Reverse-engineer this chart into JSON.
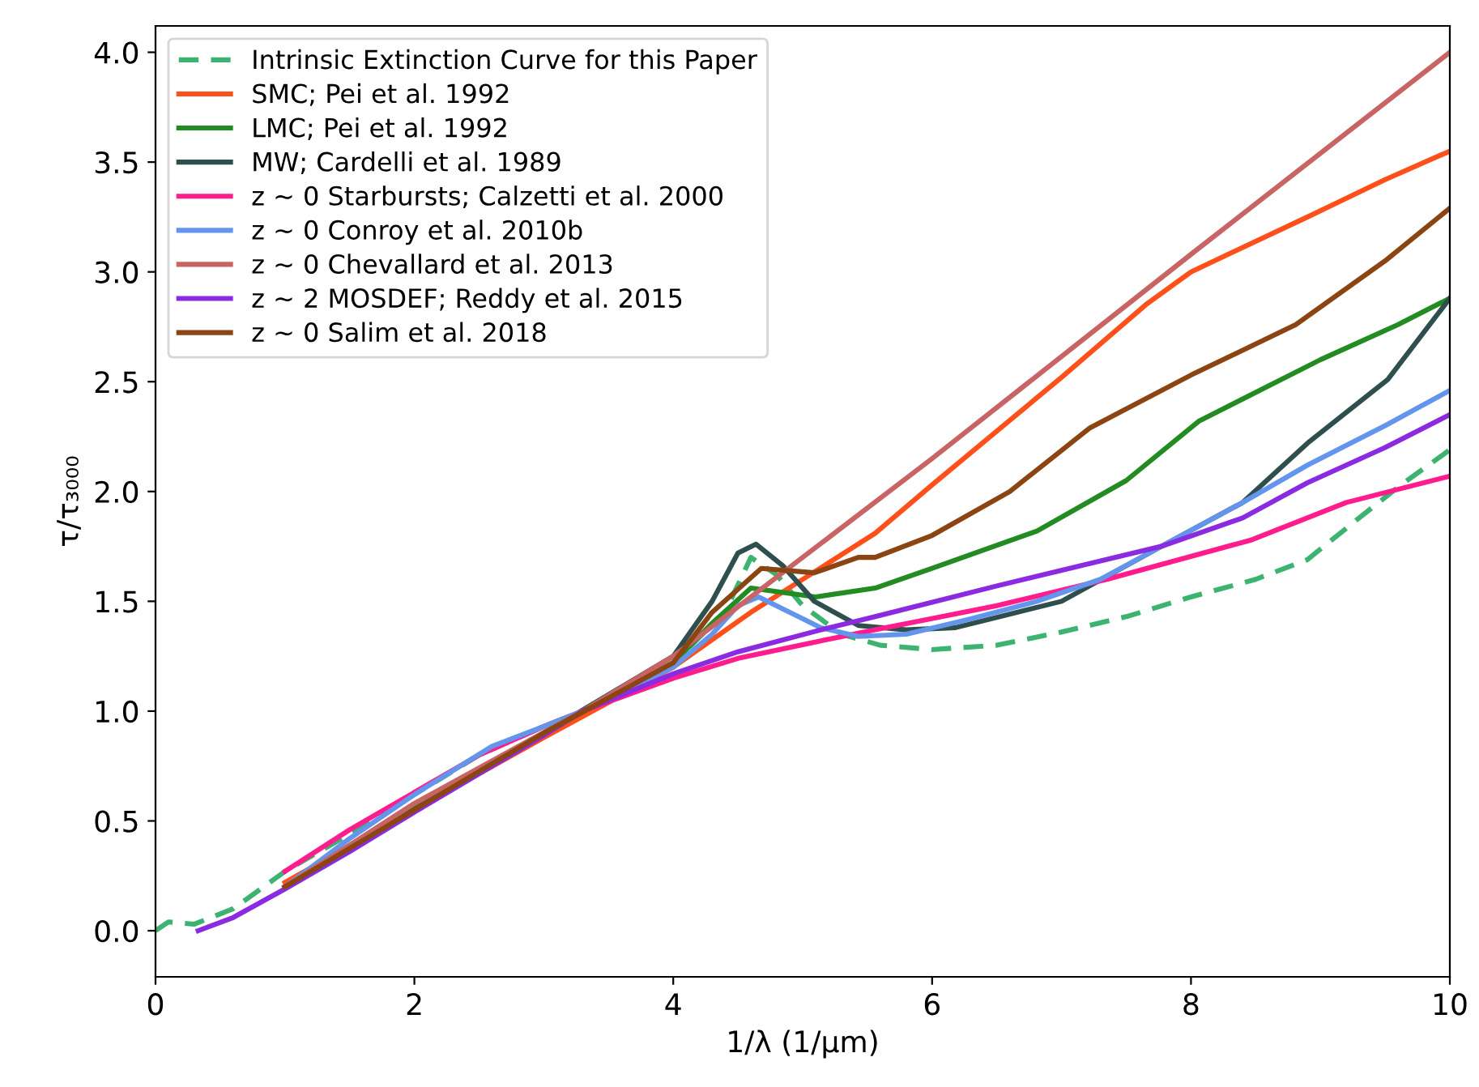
{
  "chart_data": {
    "type": "line",
    "xlabel": "1/λ (1/μm)",
    "ylabel": "τ/τ₃₀₀₀",
    "xlim": [
      0,
      10
    ],
    "xticks": [
      0,
      2,
      4,
      6,
      8,
      10
    ],
    "ylim": [
      -0.21,
      4.12
    ],
    "yticks": [
      {
        "value": 0,
        "label": "0.0"
      },
      0.5,
      {
        "value": 1,
        "label": "1.0"
      },
      1.5,
      {
        "value": 2,
        "label": "2.0"
      },
      2.5,
      {
        "value": 3,
        "label": "3.0"
      },
      3.5,
      {
        "value": 4,
        "label": "4.0"
      }
    ],
    "grid": false,
    "legend": "top left",
    "marker": "none",
    "series": [
      {
        "name": "Intrinsic Extinction Curve for this Paper",
        "color": "#3cb371",
        "line_style": "dashed",
        "x": [
          0,
          0.1,
          0.3,
          0.6,
          1,
          1.5,
          2,
          2.5,
          3,
          3.3,
          4,
          4.4,
          4.6,
          4.8,
          5.0,
          5.3,
          5.6,
          6,
          6.5,
          7,
          7.5,
          8,
          8.5,
          8.9,
          9.3,
          9.6,
          10
        ],
        "values": [
          0.0,
          0.04,
          0.03,
          0.1,
          0.27,
          0.44,
          0.62,
          0.8,
          0.93,
          1.0,
          1.22,
          1.45,
          1.7,
          1.62,
          1.48,
          1.35,
          1.3,
          1.28,
          1.3,
          1.36,
          1.43,
          1.52,
          1.6,
          1.69,
          1.88,
          2.02,
          2.19
        ]
      },
      {
        "name": "SMC; Pei et al. 1992",
        "color": "#ff4f1a",
        "x": [
          1,
          2,
          3,
          4,
          4.6,
          5,
          5.56,
          6,
          7,
          7.65,
          8,
          8.9,
          9.5,
          10
        ],
        "values": [
          0.22,
          0.55,
          0.88,
          1.2,
          1.45,
          1.6,
          1.81,
          2.03,
          2.52,
          2.85,
          3.0,
          3.25,
          3.42,
          3.55
        ]
      },
      {
        "name": "LMC; Pei et al. 1992",
        "color": "#228b22",
        "x": [
          1,
          2,
          3,
          4,
          4.3,
          4.6,
          5.1,
          5.56,
          6,
          6.81,
          7.5,
          8.06,
          9,
          9.6,
          10
        ],
        "values": [
          0.2,
          0.56,
          0.9,
          1.22,
          1.4,
          1.56,
          1.52,
          1.56,
          1.65,
          1.82,
          2.05,
          2.32,
          2.6,
          2.76,
          2.88
        ]
      },
      {
        "name": "MW; Cardelli et al. 1989",
        "color": "#2f4f4f",
        "x": [
          1,
          2,
          3,
          4,
          4.3,
          4.5,
          4.64,
          4.85,
          5.09,
          5.43,
          5.8,
          6.18,
          7,
          7.77,
          8.4,
          8.9,
          9.52,
          10
        ],
        "values": [
          0.2,
          0.55,
          0.9,
          1.25,
          1.5,
          1.72,
          1.76,
          1.66,
          1.5,
          1.39,
          1.37,
          1.38,
          1.5,
          1.75,
          1.95,
          2.22,
          2.51,
          2.88
        ]
      },
      {
        "name": "z ∼ 0 Starbursts; Calzetti et al. 2000",
        "color": "#ff1c8c",
        "x": [
          1,
          1.5,
          2,
          2.5,
          3,
          3.3,
          4,
          4.5,
          5.14,
          5.56,
          6.5,
          7.35,
          8.47,
          9.2,
          10
        ],
        "values": [
          0.27,
          0.46,
          0.63,
          0.8,
          0.93,
          1.0,
          1.15,
          1.24,
          1.32,
          1.37,
          1.48,
          1.6,
          1.78,
          1.95,
          2.07
        ]
      },
      {
        "name": "z ∼ 0 Conroy et al. 2010b",
        "color": "#6495ed",
        "x": [
          1,
          1.5,
          2,
          2.6,
          3,
          3.3,
          4,
          4.3,
          4.5,
          4.66,
          4.9,
          5.14,
          5.43,
          5.8,
          6.3,
          6.81,
          7.3,
          7.77,
          8.4,
          8.9,
          9.5,
          10
        ],
        "values": [
          0.2,
          0.42,
          0.62,
          0.84,
          0.93,
          1.0,
          1.2,
          1.35,
          1.48,
          1.52,
          1.45,
          1.38,
          1.34,
          1.35,
          1.42,
          1.5,
          1.6,
          1.75,
          1.95,
          2.12,
          2.3,
          2.46
        ]
      },
      {
        "name": "z ∼ 0 Chevallard et al. 2013",
        "color": "#c86464",
        "x": [
          1,
          2,
          3.3,
          4,
          5,
          6,
          8,
          10
        ],
        "values": [
          0.2,
          0.58,
          1.0,
          1.25,
          1.7,
          2.15,
          3.08,
          4.0
        ]
      },
      {
        "name": "z ∼ 2 MOSDEF; Reddy et al. 2015",
        "color": "#8a2be2",
        "x": [
          0.33,
          0.6,
          1,
          1.5,
          2,
          3,
          3.3,
          4,
          4.5,
          5.14,
          5.56,
          6.5,
          7.77,
          8.4,
          8.9,
          9.5,
          10
        ],
        "values": [
          0.0,
          0.06,
          0.19,
          0.36,
          0.54,
          0.89,
          1.0,
          1.17,
          1.27,
          1.37,
          1.43,
          1.57,
          1.75,
          1.88,
          2.04,
          2.2,
          2.35
        ]
      },
      {
        "name": "z ∼ 0 Salim et al. 2018",
        "color": "#8b4513",
        "x": [
          1,
          2,
          3,
          4,
          4.3,
          4.68,
          5.09,
          5.43,
          5.56,
          6,
          6.6,
          7.22,
          8,
          8.81,
          9.5,
          10
        ],
        "values": [
          0.2,
          0.55,
          0.9,
          1.22,
          1.45,
          1.65,
          1.63,
          1.7,
          1.7,
          1.8,
          2.0,
          2.29,
          2.53,
          2.76,
          3.05,
          3.29
        ]
      }
    ]
  }
}
